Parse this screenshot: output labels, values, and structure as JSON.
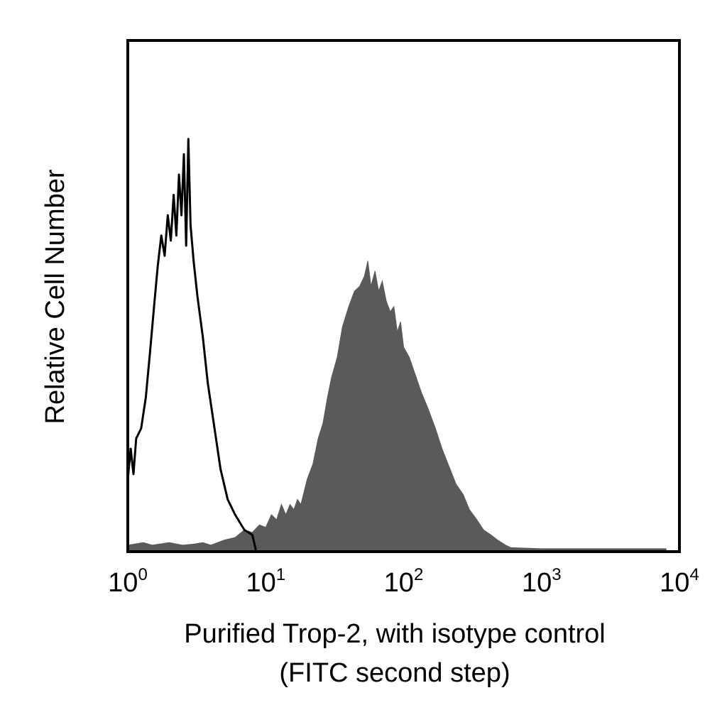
{
  "chart_data": {
    "type": "area",
    "xscale": "log",
    "xlim": [
      1,
      10000
    ],
    "ylim": [
      0,
      1
    ],
    "grid": false,
    "legend": "none",
    "ylabel": "Relative Cell Number",
    "xlabel_lines": [
      "Purified Trop-2, with isotype control",
      "(FITC second step)"
    ],
    "x_ticks": [
      {
        "base": "10",
        "exp": "0",
        "value": 1
      },
      {
        "base": "10",
        "exp": "1",
        "value": 10
      },
      {
        "base": "10",
        "exp": "2",
        "value": 100
      },
      {
        "base": "10",
        "exp": "3",
        "value": 1000
      },
      {
        "base": "10",
        "exp": "4",
        "value": 10000
      }
    ],
    "series": [
      {
        "style": "outline",
        "color": "#000000",
        "points": [
          [
            1.0,
            0.14
          ],
          [
            1.05,
            0.2
          ],
          [
            1.1,
            0.15
          ],
          [
            1.15,
            0.22
          ],
          [
            1.25,
            0.24
          ],
          [
            1.35,
            0.3
          ],
          [
            1.45,
            0.39
          ],
          [
            1.55,
            0.48
          ],
          [
            1.65,
            0.56
          ],
          [
            1.75,
            0.62
          ],
          [
            1.85,
            0.58
          ],
          [
            1.95,
            0.66
          ],
          [
            2.05,
            0.61
          ],
          [
            2.15,
            0.7
          ],
          [
            2.25,
            0.62
          ],
          [
            2.35,
            0.74
          ],
          [
            2.45,
            0.66
          ],
          [
            2.55,
            0.78
          ],
          [
            2.65,
            0.6
          ],
          [
            2.75,
            0.81
          ],
          [
            2.85,
            0.64
          ],
          [
            3.0,
            0.57
          ],
          [
            3.2,
            0.5
          ],
          [
            3.5,
            0.42
          ],
          [
            3.8,
            0.33
          ],
          [
            4.2,
            0.25
          ],
          [
            4.7,
            0.16
          ],
          [
            5.3,
            0.1
          ],
          [
            6.0,
            0.07
          ],
          [
            7.0,
            0.04
          ],
          [
            8.0,
            0.03
          ],
          [
            8.5,
            0.0
          ]
        ]
      },
      {
        "style": "filled",
        "color": "#5a5a5a",
        "points": [
          [
            1.0,
            0.01
          ],
          [
            1.3,
            0.015
          ],
          [
            1.5,
            0.01
          ],
          [
            2.0,
            0.015
          ],
          [
            2.5,
            0.01
          ],
          [
            3.0,
            0.012
          ],
          [
            3.5,
            0.015
          ],
          [
            4.0,
            0.01
          ],
          [
            5.0,
            0.02
          ],
          [
            6.0,
            0.025
          ],
          [
            7.0,
            0.04
          ],
          [
            8.0,
            0.035
          ],
          [
            9.0,
            0.05
          ],
          [
            10.0,
            0.045
          ],
          [
            11.0,
            0.07
          ],
          [
            12.0,
            0.06
          ],
          [
            13.0,
            0.09
          ],
          [
            14.0,
            0.07
          ],
          [
            15.0,
            0.09
          ],
          [
            16.0,
            0.08
          ],
          [
            17.0,
            0.1
          ],
          [
            18.0,
            0.09
          ],
          [
            20.0,
            0.14
          ],
          [
            22.0,
            0.17
          ],
          [
            24.0,
            0.22
          ],
          [
            26.0,
            0.25
          ],
          [
            28.0,
            0.3
          ],
          [
            30.0,
            0.34
          ],
          [
            33.0,
            0.38
          ],
          [
            36.0,
            0.44
          ],
          [
            40.0,
            0.48
          ],
          [
            44.0,
            0.51
          ],
          [
            48.0,
            0.52
          ],
          [
            52.0,
            0.54
          ],
          [
            55.0,
            0.57
          ],
          [
            58.0,
            0.52
          ],
          [
            62.0,
            0.55
          ],
          [
            66.0,
            0.51
          ],
          [
            70.0,
            0.53
          ],
          [
            75.0,
            0.49
          ],
          [
            80.0,
            0.47
          ],
          [
            85.0,
            0.48
          ],
          [
            90.0,
            0.43
          ],
          [
            95.0,
            0.45
          ],
          [
            100.0,
            0.4
          ],
          [
            110.0,
            0.38
          ],
          [
            120.0,
            0.35
          ],
          [
            135.0,
            0.31
          ],
          [
            150.0,
            0.28
          ],
          [
            170.0,
            0.24
          ],
          [
            190.0,
            0.2
          ],
          [
            210.0,
            0.17
          ],
          [
            240.0,
            0.13
          ],
          [
            270.0,
            0.11
          ],
          [
            300.0,
            0.08
          ],
          [
            340.0,
            0.06
          ],
          [
            380.0,
            0.04
          ],
          [
            430.0,
            0.03
          ],
          [
            480.0,
            0.02
          ],
          [
            550.0,
            0.01
          ],
          [
            600.0,
            0.005
          ],
          [
            1000.0,
            0.003
          ],
          [
            3000.0,
            0.003
          ],
          [
            8000.0,
            0.003
          ]
        ]
      }
    ]
  }
}
